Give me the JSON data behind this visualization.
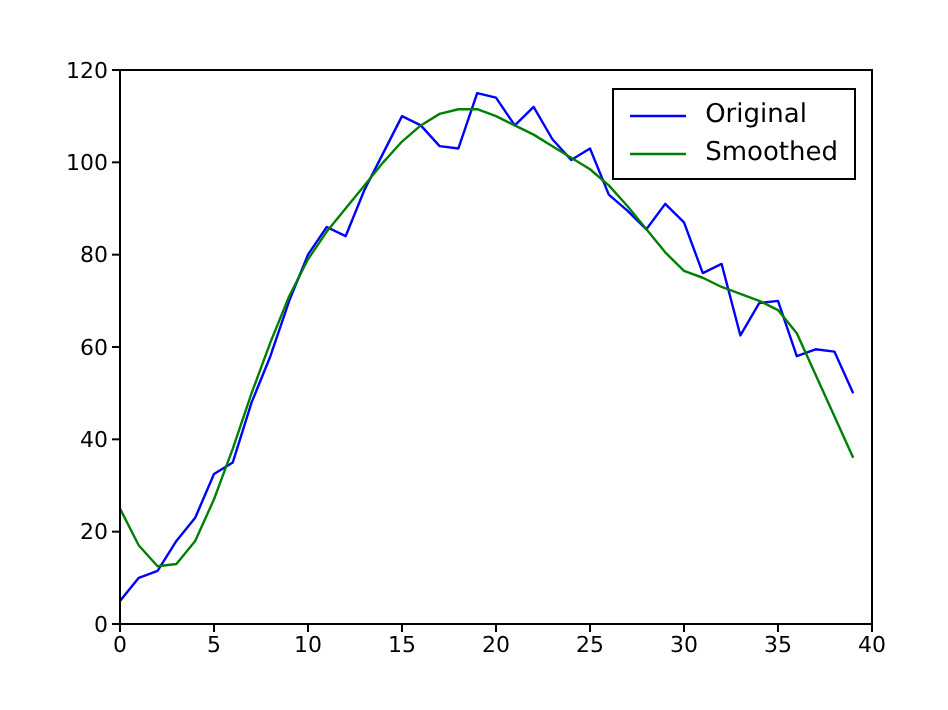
{
  "chart_data": {
    "type": "line",
    "x": [
      0,
      1,
      2,
      3,
      4,
      5,
      6,
      7,
      8,
      9,
      10,
      11,
      12,
      13,
      14,
      15,
      16,
      17,
      18,
      19,
      20,
      21,
      22,
      23,
      24,
      25,
      26,
      27,
      28,
      29,
      30,
      31,
      32,
      33,
      34,
      35,
      36,
      37,
      38,
      39
    ],
    "series": [
      {
        "name": "Original",
        "color": "#0000ff",
        "values": [
          5,
          10,
          11.5,
          18,
          23,
          32.5,
          35,
          48,
          58,
          70,
          80,
          86,
          84,
          94,
          102,
          110,
          108,
          103.5,
          103,
          115,
          114,
          108,
          112,
          105,
          100.5,
          103,
          93,
          89.5,
          85.5,
          91,
          87,
          76,
          78,
          62.5,
          69.5,
          70,
          58,
          59.5,
          59,
          50
        ]
      },
      {
        "name": "Smoothed",
        "color": "#008000",
        "values": [
          25,
          17,
          12.5,
          13,
          18,
          27,
          38,
          50,
          61,
          71,
          79,
          85,
          90,
          95,
          100,
          104.5,
          108,
          110.5,
          111.5,
          111.5,
          110,
          108,
          106,
          103.5,
          101,
          98.5,
          95,
          90.5,
          85.5,
          80.5,
          76.5,
          75,
          73,
          71.5,
          70,
          68,
          63,
          54,
          45,
          36
        ]
      }
    ],
    "xlim": [
      0,
      40
    ],
    "xticks": [
      0,
      5,
      10,
      15,
      20,
      25,
      30,
      35,
      40
    ],
    "ylim": [
      0,
      120
    ],
    "yticks": [
      0,
      20,
      40,
      60,
      80,
      100,
      120
    ],
    "grid": false,
    "legend": "top right",
    "marker": "none",
    "line_style": "solid"
  }
}
